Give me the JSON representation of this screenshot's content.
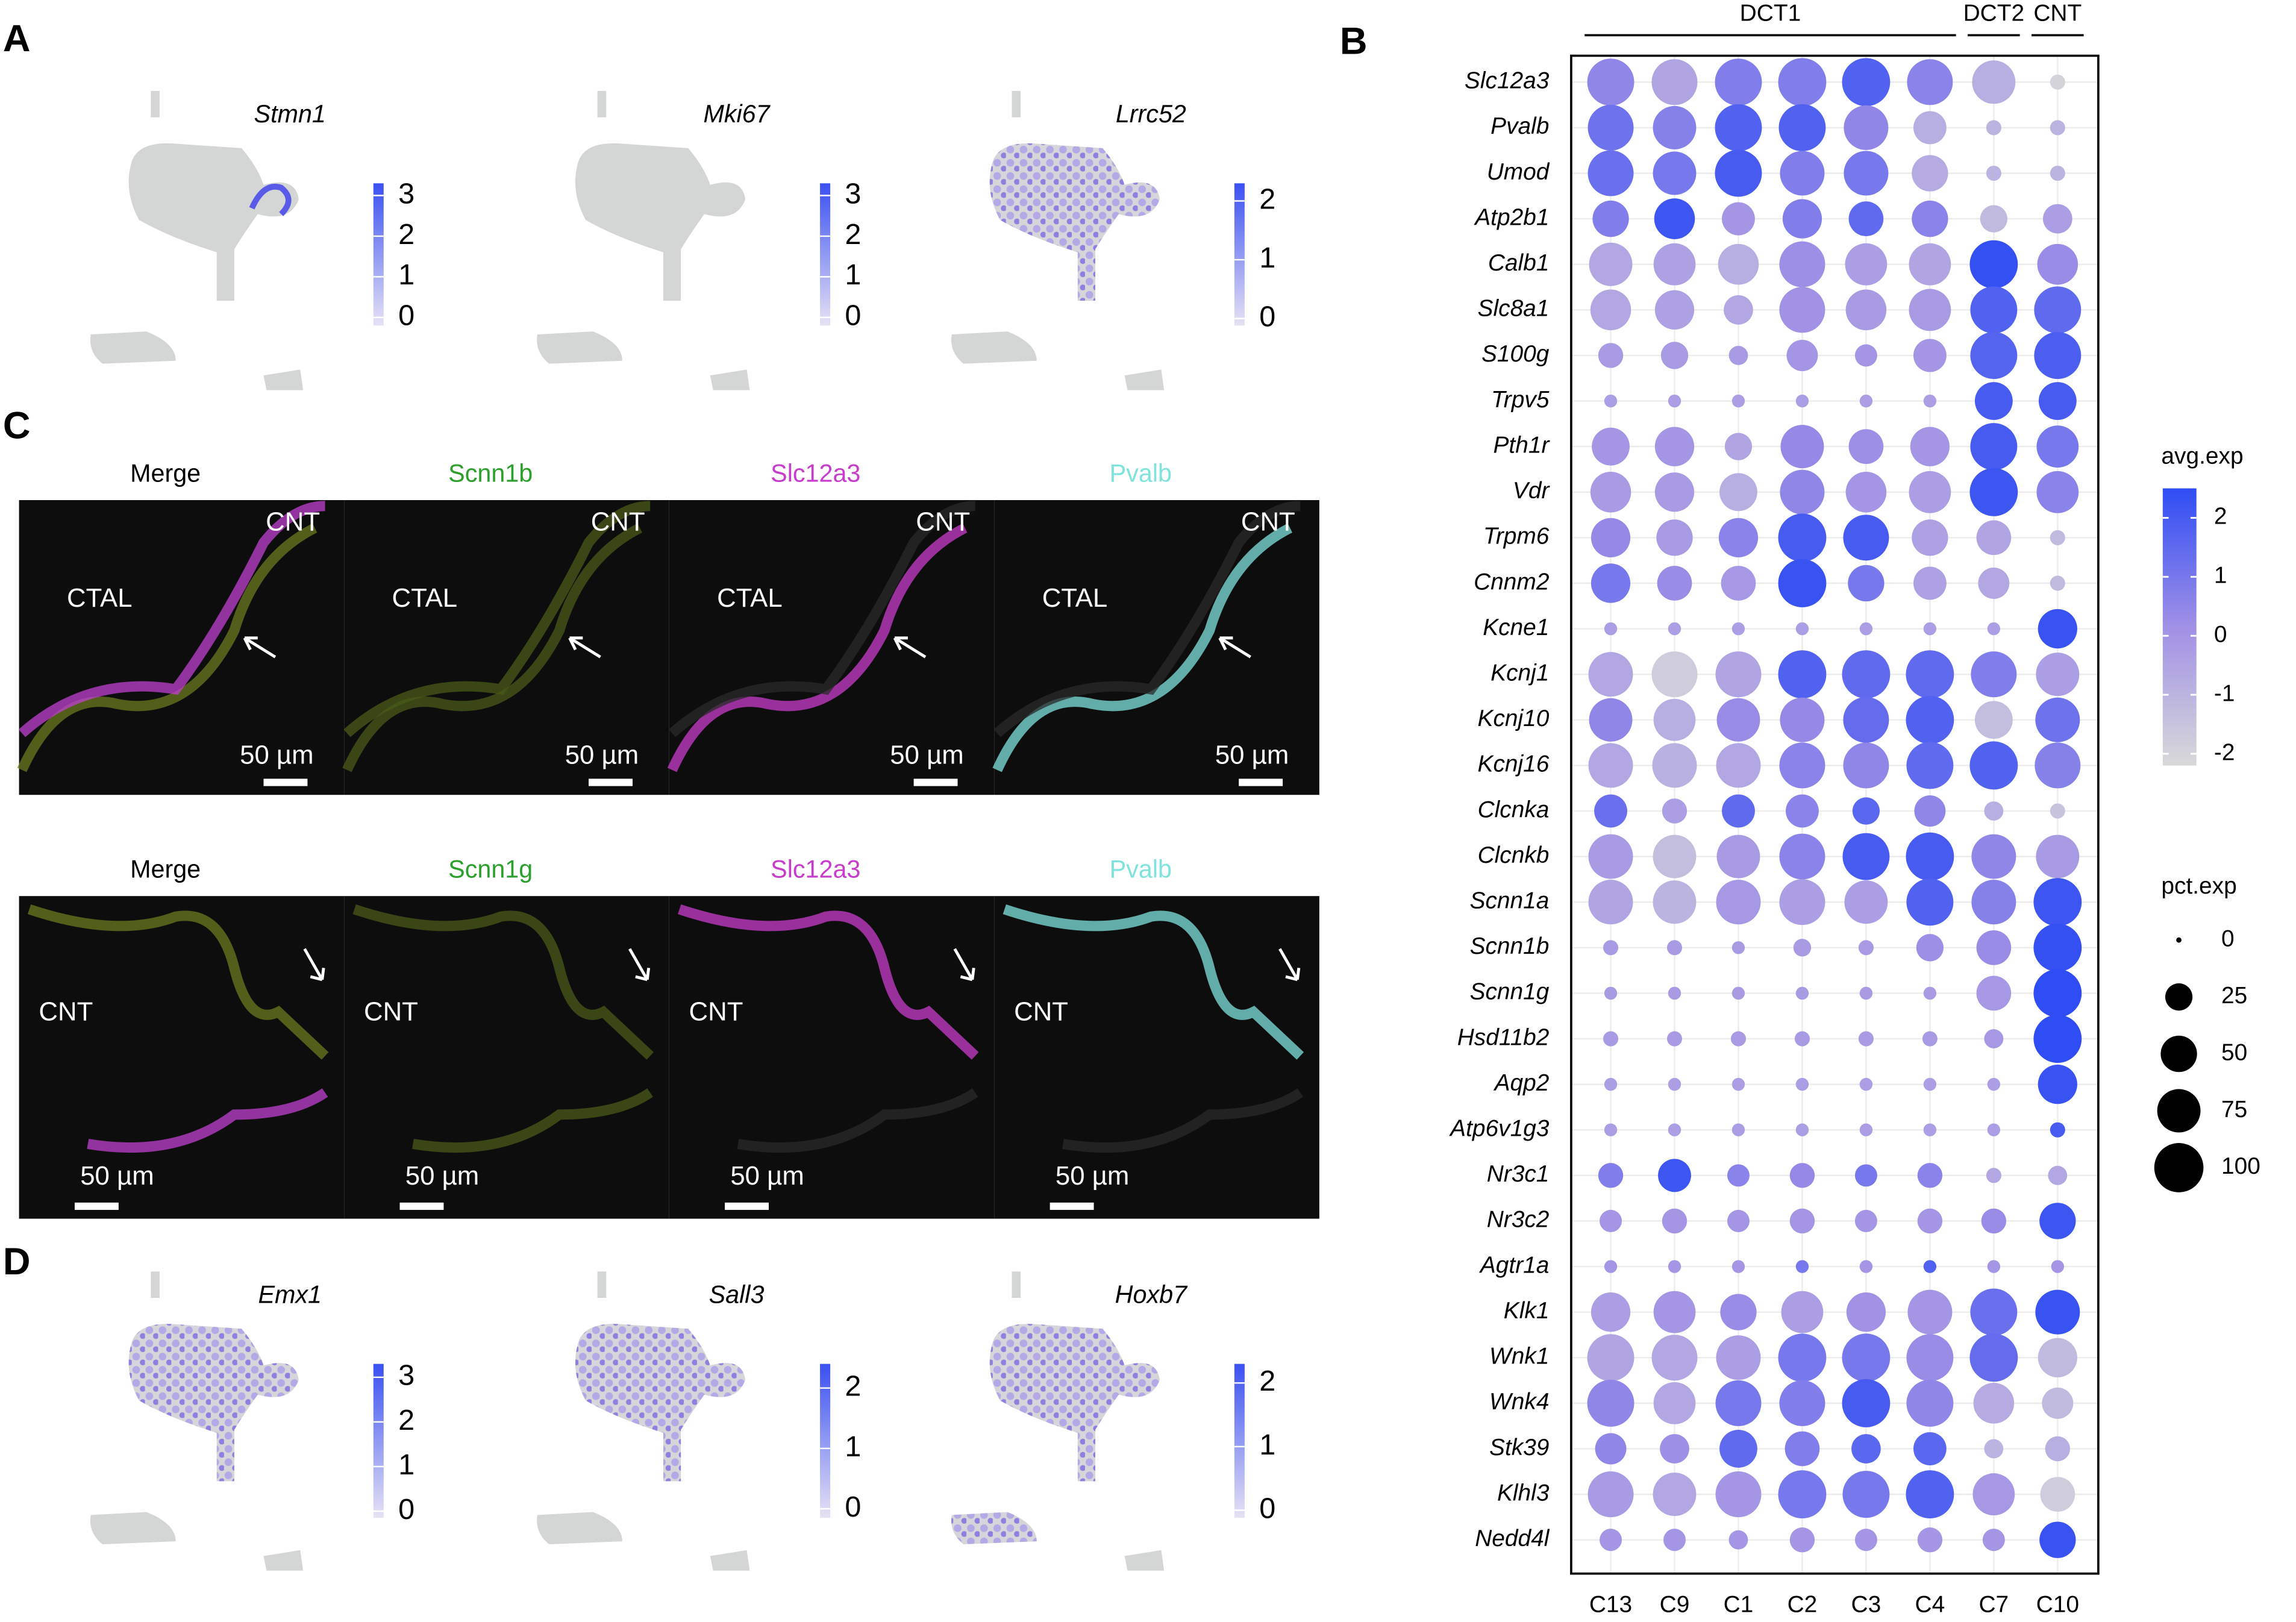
{
  "panel_labels": [
    "A",
    "B",
    "C",
    "D"
  ],
  "chart_data": [
    {
      "type": "feature",
      "title": "Stmn1",
      "clim": [
        -0.2,
        3.3
      ],
      "cticks": [
        0,
        1,
        2,
        3
      ],
      "colormap": [
        "#e6e2f4",
        "#3a50f2"
      ]
    },
    {
      "type": "feature",
      "title": "Mki67",
      "clim": [
        -0.2,
        3.3
      ],
      "cticks": [
        0,
        1,
        2,
        3
      ],
      "colormap": [
        "#e6e2f4",
        "#3a50f2"
      ]
    },
    {
      "type": "feature",
      "title": "Lrrc52",
      "clim": [
        -0.12,
        2.3
      ],
      "cticks": [
        0,
        1,
        2
      ],
      "colormap": [
        "#e6e2f4",
        "#3a50f2"
      ]
    },
    {
      "type": "feature",
      "title": "Emx1",
      "clim": [
        -0.15,
        3.3
      ],
      "cticks": [
        0,
        1,
        2,
        3
      ],
      "colormap": [
        "#e6e2f4",
        "#3a50f2"
      ]
    },
    {
      "type": "feature",
      "title": "Sall3",
      "clim": [
        -0.15,
        2.4
      ],
      "cticks": [
        0,
        1,
        2
      ],
      "colormap": [
        "#e6e2f4",
        "#3a50f2"
      ]
    },
    {
      "type": "feature",
      "title": "Hoxb7",
      "clim": [
        -0.12,
        2.3
      ],
      "cticks": [
        0,
        1,
        2
      ],
      "colormap": [
        "#e6e2f4",
        "#3a50f2"
      ]
    },
    {
      "type": "dotplot",
      "genes": [
        "Slc12a3",
        "Pvalb",
        "Umod",
        "Atp2b1",
        "Calb1",
        "Slc8a1",
        "S100g",
        "Trpv5",
        "Pth1r",
        "Vdr",
        "Trpm6",
        "Cnnm2",
        "Kcne1",
        "Kcnj1",
        "Kcnj10",
        "Kcnj16",
        "Clcnka",
        "Clcnkb",
        "Scnn1a",
        "Scnn1b",
        "Scnn1g",
        "Hsd11b2",
        "Aqp2",
        "Atp6v1g3",
        "Nr3c1",
        "Nr3c2",
        "Agtr1a",
        "Klk1",
        "Wnk1",
        "Wnk4",
        "Stk39",
        "Klhl3",
        "Nedd4l"
      ],
      "clusters": [
        "C13",
        "C9",
        "C1",
        "C2",
        "C3",
        "C4",
        "C7",
        "C10"
      ],
      "groups": [
        {
          "label": "DCT1",
          "clusters": [
            "C13",
            "C9",
            "C1",
            "C2",
            "C3",
            "C4"
          ]
        },
        {
          "label": "DCT2",
          "clusters": [
            "C7"
          ]
        },
        {
          "label": "CNT",
          "clusters": [
            "C10"
          ]
        }
      ],
      "avg_exp": [
        [
          0.5,
          -0.5,
          0.8,
          0.8,
          1.8,
          0.6,
          -0.8,
          -2
        ],
        [
          1.2,
          0.7,
          1.8,
          1.8,
          0.5,
          -0.8,
          -1,
          -1
        ],
        [
          1.3,
          1,
          2,
          0.8,
          1,
          -0.7,
          -1,
          -1
        ],
        [
          0.8,
          2.2,
          0,
          0.8,
          1.5,
          0.6,
          -1.2,
          -0.3
        ],
        [
          -0.6,
          -0.4,
          -0.8,
          0.2,
          -0.3,
          -0.5,
          2.4,
          0.3
        ],
        [
          -0.6,
          -0.4,
          -0.6,
          0.1,
          -0.2,
          -0.2,
          1.8,
          1.5
        ],
        [
          -0.2,
          -0.2,
          -0.2,
          0,
          0,
          0,
          1.7,
          1.9
        ],
        [
          -0.3,
          -0.3,
          -0.3,
          -0.3,
          -0.3,
          -0.3,
          2,
          2
        ],
        [
          0,
          0,
          -0.5,
          0.4,
          0.2,
          0,
          2,
          1
        ],
        [
          -0.2,
          -0.2,
          -0.8,
          0.5,
          0,
          -0.3,
          2.2,
          0.6
        ],
        [
          0.4,
          -0.2,
          0.6,
          2,
          2,
          -0.4,
          -0.5,
          -1.2
        ],
        [
          1,
          0.3,
          -0.1,
          2.3,
          1,
          -0.4,
          -0.6,
          -1.2
        ],
        [
          -0.3,
          -0.3,
          -0.3,
          -0.3,
          -0.3,
          -0.3,
          -0.3,
          2.3
        ],
        [
          -0.6,
          -1.8,
          -0.5,
          1.8,
          1.5,
          1.5,
          0.8,
          -0.3
        ],
        [
          0.5,
          -0.8,
          0.3,
          0.4,
          1.4,
          1.8,
          -1.3,
          1.2
        ],
        [
          -0.6,
          -0.9,
          -0.6,
          0.6,
          0.5,
          1.5,
          1.8,
          0.7
        ],
        [
          1.3,
          -0.3,
          1.5,
          0.6,
          1.6,
          0.5,
          -0.8,
          -1.5
        ],
        [
          -0.2,
          -1.3,
          -0.2,
          0.6,
          2,
          2,
          0.5,
          -0.2
        ],
        [
          -0.5,
          -1,
          -0.1,
          -0.3,
          -0.3,
          1.8,
          0.7,
          2.2
        ],
        [
          -0.2,
          -0.2,
          -0.2,
          -0.2,
          -0.2,
          0.2,
          0.3,
          2.4
        ],
        [
          -0.2,
          -0.2,
          -0.2,
          -0.2,
          -0.2,
          -0.2,
          -0.1,
          2.5
        ],
        [
          -0.2,
          -0.2,
          -0.2,
          -0.2,
          -0.2,
          -0.2,
          -0.1,
          2.5
        ],
        [
          -0.3,
          -0.3,
          -0.3,
          -0.3,
          -0.3,
          -0.3,
          -0.3,
          2.3
        ],
        [
          -0.3,
          -0.3,
          -0.3,
          -0.3,
          -0.3,
          -0.3,
          -0.3,
          2
        ],
        [
          0.8,
          2.2,
          0.6,
          0.4,
          1,
          0.6,
          -0.6,
          -0.6
        ],
        [
          0,
          0,
          0,
          0,
          0,
          0,
          0.3,
          2.2
        ],
        [
          0,
          0,
          0,
          1,
          0,
          1.8,
          0,
          0
        ],
        [
          -0.3,
          0,
          0.3,
          -0.3,
          0.1,
          0,
          1.3,
          2.3
        ],
        [
          -0.5,
          -0.6,
          -0.3,
          1,
          1,
          0.3,
          1.4,
          -1.2
        ],
        [
          0.5,
          -0.6,
          1,
          0.8,
          2,
          0.5,
          -0.7,
          -1.2
        ],
        [
          0.5,
          0.2,
          1.5,
          0.8,
          1.6,
          1.6,
          -1,
          -0.8
        ],
        [
          -0.2,
          -0.6,
          0,
          1,
          1,
          1.8,
          -0.1,
          -1.8
        ],
        [
          0,
          0,
          0,
          0,
          0,
          0,
          0,
          2.3
        ]
      ],
      "pct_exp": [
        [
          90,
          85,
          90,
          95,
          95,
          85,
          75,
          5
        ],
        [
          85,
          75,
          90,
          90,
          80,
          40,
          5,
          5
        ],
        [
          85,
          75,
          90,
          80,
          80,
          50,
          5,
          5
        ],
        [
          50,
          65,
          40,
          60,
          45,
          50,
          25,
          30
        ],
        [
          75,
          70,
          65,
          85,
          70,
          70,
          95,
          65
        ],
        [
          65,
          60,
          30,
          85,
          65,
          70,
          90,
          90
        ],
        [
          20,
          25,
          10,
          35,
          15,
          40,
          90,
          90
        ],
        [
          3,
          3,
          3,
          3,
          3,
          3,
          55,
          55
        ],
        [
          55,
          60,
          25,
          75,
          45,
          60,
          90,
          70
        ],
        [
          65,
          60,
          55,
          80,
          65,
          70,
          95,
          70
        ],
        [
          60,
          50,
          60,
          95,
          85,
          50,
          45,
          5
        ],
        [
          60,
          45,
          45,
          95,
          50,
          40,
          35,
          5
        ],
        [
          3,
          3,
          3,
          3,
          3,
          3,
          3,
          60
        ],
        [
          80,
          85,
          85,
          95,
          95,
          95,
          85,
          75
        ],
        [
          75,
          70,
          75,
          80,
          85,
          95,
          55,
          80
        ],
        [
          80,
          80,
          80,
          85,
          85,
          90,
          95,
          85
        ],
        [
          40,
          20,
          40,
          40,
          25,
          35,
          10,
          5
        ],
        [
          80,
          75,
          75,
          85,
          90,
          95,
          80,
          75
        ],
        [
          80,
          75,
          80,
          85,
          75,
          90,
          80,
          95
        ],
        [
          5,
          5,
          3,
          8,
          5,
          25,
          45,
          95
        ],
        [
          3,
          3,
          3,
          3,
          3,
          3,
          45,
          95
        ],
        [
          5,
          5,
          5,
          5,
          5,
          5,
          10,
          95
        ],
        [
          3,
          3,
          3,
          3,
          3,
          3,
          3,
          60
        ],
        [
          3,
          3,
          3,
          3,
          3,
          3,
          3,
          5
        ],
        [
          20,
          40,
          15,
          20,
          15,
          20,
          5,
          10
        ],
        [
          15,
          20,
          15,
          20,
          15,
          20,
          20,
          50
        ],
        [
          3,
          3,
          3,
          3,
          3,
          3,
          3,
          3
        ],
        [
          60,
          70,
          50,
          70,
          60,
          80,
          90,
          80
        ],
        [
          90,
          85,
          80,
          95,
          95,
          90,
          95,
          60
        ],
        [
          90,
          70,
          85,
          85,
          95,
          90,
          65,
          35
        ],
        [
          35,
          30,
          55,
          45,
          30,
          40,
          10,
          20
        ],
        [
          85,
          75,
          85,
          95,
          90,
          95,
          70,
          45
        ],
        [
          15,
          15,
          10,
          20,
          15,
          20,
          15,
          50
        ]
      ],
      "colormap": [
        "#d9d9d9",
        "#a090e6",
        "#2f4df4"
      ],
      "color_legend": {
        "title": "avg.exp",
        "lim": [
          -2.2,
          2.5
        ],
        "ticks": [
          -2,
          -1,
          0,
          1,
          2
        ]
      },
      "size_legend": {
        "title": "pct.exp",
        "values": [
          0,
          25,
          50,
          75,
          100
        ]
      },
      "grid": true
    }
  ],
  "panel_C": {
    "scale_bar": "50 µm",
    "rows": [
      {
        "titles": [
          "Merge",
          "Scnn1b",
          "Slc12a3",
          "Pvalb"
        ],
        "labels": [
          "CNT",
          "CTAL"
        ]
      },
      {
        "titles": [
          "Merge",
          "Scnn1g",
          "Slc12a3",
          "Pvalb"
        ],
        "labels": [
          "CNT"
        ]
      }
    ],
    "title_colors": [
      "#000000",
      "#2ca02c",
      "#c83ccc",
      "#7fe3dd"
    ]
  }
}
